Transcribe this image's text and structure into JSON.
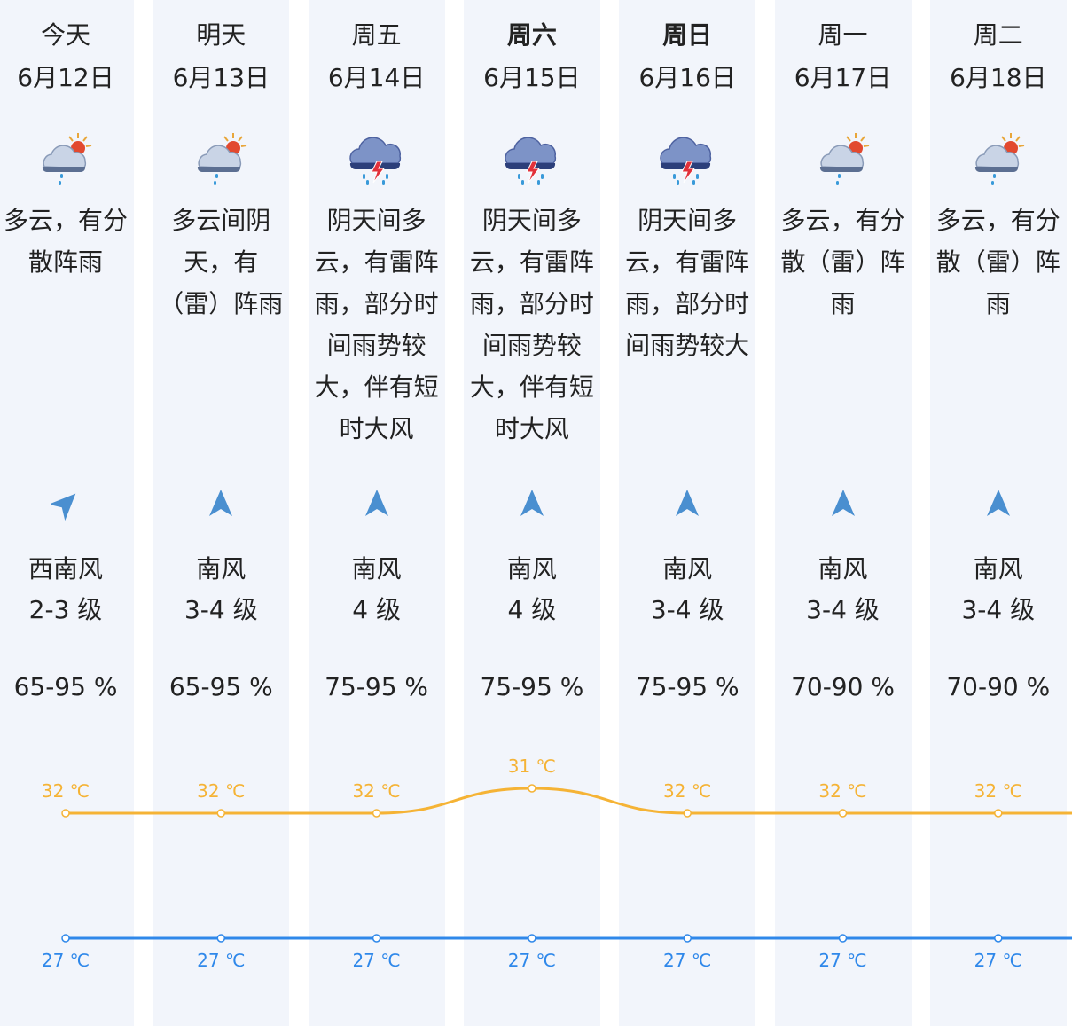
{
  "days": [
    {
      "weekday": "今天",
      "date": "6月12日",
      "bold": false,
      "icon": "partly-cloudy-rain-icon",
      "desc": "多云，有分\n散阵雨",
      "wind_dir": "西南风",
      "wind_level": "2-3 级",
      "wind_arrow": "southwest-wind-arrow-icon",
      "humidity": "65-95 %",
      "high_label": "32 ℃",
      "low_label": "27 ℃"
    },
    {
      "weekday": "明天",
      "date": "6月13日",
      "bold": false,
      "icon": "partly-cloudy-rain-icon",
      "desc": "多云间阴\n天，有\n（雷）阵雨",
      "wind_dir": "南风",
      "wind_level": "3-4 级",
      "wind_arrow": "south-wind-arrow-icon",
      "humidity": "65-95 %",
      "high_label": "32 ℃",
      "low_label": "27 ℃"
    },
    {
      "weekday": "周五",
      "date": "6月14日",
      "bold": false,
      "icon": "thunderstorm-icon",
      "desc": "阴天间多\n云，有雷阵\n雨，部分时\n间雨势较\n大，伴有短\n时大风",
      "wind_dir": "南风",
      "wind_level": "4 级",
      "wind_arrow": "south-wind-arrow-icon",
      "humidity": "75-95 %",
      "high_label": "32 ℃",
      "low_label": "27 ℃"
    },
    {
      "weekday": "周六",
      "date": "6月15日",
      "bold": true,
      "icon": "thunderstorm-icon",
      "desc": "阴天间多\n云，有雷阵\n雨，部分时\n间雨势较\n大，伴有短\n时大风",
      "wind_dir": "南风",
      "wind_level": "4 级",
      "wind_arrow": "south-wind-arrow-icon",
      "humidity": "75-95 %",
      "high_label": "31 ℃",
      "low_label": "27 ℃"
    },
    {
      "weekday": "周日",
      "date": "6月16日",
      "bold": true,
      "icon": "thunderstorm-icon",
      "desc": "阴天间多\n云，有雷阵\n雨，部分时\n间雨势较大",
      "wind_dir": "南风",
      "wind_level": "3-4 级",
      "wind_arrow": "south-wind-arrow-icon",
      "humidity": "75-95 %",
      "high_label": "32 ℃",
      "low_label": "27 ℃"
    },
    {
      "weekday": "周一",
      "date": "6月17日",
      "bold": false,
      "icon": "partly-cloudy-rain-icon",
      "desc": "多云，有分\n散（雷）阵\n雨",
      "wind_dir": "南风",
      "wind_level": "3-4 级",
      "wind_arrow": "south-wind-arrow-icon",
      "humidity": "70-90 %",
      "high_label": "32 ℃",
      "low_label": "27 ℃"
    },
    {
      "weekday": "周二",
      "date": "6月18日",
      "bold": false,
      "icon": "partly-cloudy-rain-icon",
      "desc": "多云，有分\n散（雷）阵\n雨",
      "wind_dir": "南风",
      "wind_level": "3-4 级",
      "wind_arrow": "south-wind-arrow-icon",
      "humidity": "70-90 %",
      "high_label": "32 ℃",
      "low_label": "27 ℃"
    }
  ],
  "chart_data": {
    "type": "line",
    "categories": [
      "6月12日",
      "6月13日",
      "6月14日",
      "6月15日",
      "6月16日",
      "6月17日",
      "6月18日"
    ],
    "series": [
      {
        "values": [
          32,
          32,
          32,
          31,
          32,
          32,
          32
        ],
        "color": "#f5b335"
      },
      {
        "values": [
          27,
          27,
          27,
          27,
          27,
          27,
          27
        ],
        "color": "#2f88ea"
      }
    ],
    "unit": "℃"
  },
  "colors": {
    "high_line": "#f5b335",
    "low_line": "#2f88ea",
    "column_bg": "#f2f5fb",
    "arrow": "#4a8fd0"
  }
}
